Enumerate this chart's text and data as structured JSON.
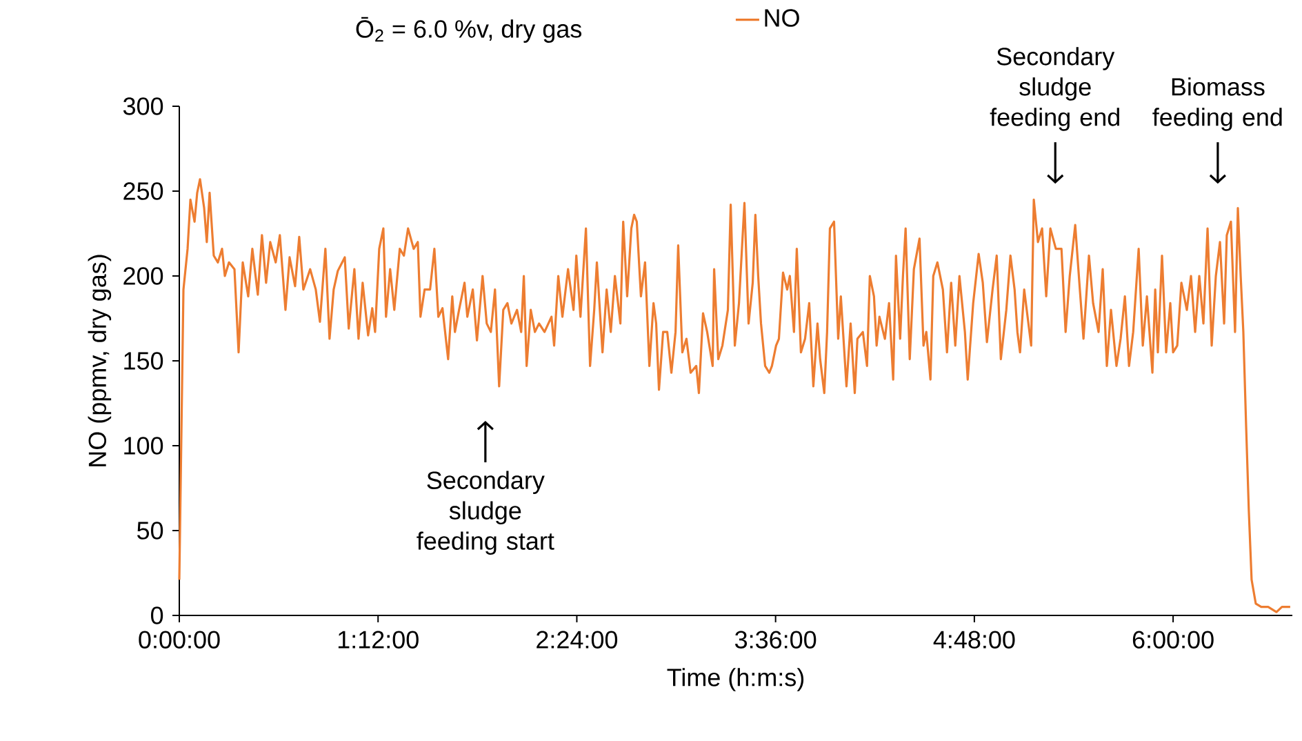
{
  "chart_data": {
    "type": "line",
    "xlabel": "Time (h:m:s)",
    "ylabel": "NO (ppmv, dry gas)",
    "xlim": [
      0,
      6.72
    ],
    "ylim": [
      0,
      300
    ],
    "xticks": [
      {
        "value": 0,
        "label": "0:00:00"
      },
      {
        "value": 1.2,
        "label": "1:12:00"
      },
      {
        "value": 2.4,
        "label": "2:24:00"
      },
      {
        "value": 3.6,
        "label": "3:36:00"
      },
      {
        "value": 4.8,
        "label": "4:48:00"
      },
      {
        "value": 6.0,
        "label": "6:00:00"
      }
    ],
    "yticks": [
      0,
      50,
      100,
      150,
      200,
      250,
      300
    ],
    "grid": false,
    "legend": "top",
    "marker": "none",
    "line_style": "solid",
    "annotations": [
      "Ō$_{2}$ = 6.0 %v, dry gas",
      "Secondary sludge feeding start",
      "Secondary sludge feeding end",
      "Biomass feeding end"
    ],
    "series": [
      {
        "name": "NO",
        "color": "#ed7d31",
        "x": [
          0,
          0.025,
          0.05,
          0.067,
          0.092,
          0.108,
          0.125,
          0.15,
          0.166,
          0.183,
          0.208,
          0.233,
          0.258,
          0.275,
          0.3,
          0.333,
          0.358,
          0.383,
          0.416,
          0.441,
          0.474,
          0.499,
          0.524,
          0.549,
          0.582,
          0.607,
          0.641,
          0.666,
          0.699,
          0.724,
          0.749,
          0.79,
          0.824,
          0.849,
          0.882,
          0.907,
          0.932,
          0.957,
          0.999,
          1.023,
          1.057,
          1.082,
          1.107,
          1.14,
          1.165,
          1.182,
          1.207,
          1.232,
          1.248,
          1.273,
          1.298,
          1.331,
          1.356,
          1.381,
          1.415,
          1.44,
          1.456,
          1.481,
          1.514,
          1.54,
          1.564,
          1.589,
          1.623,
          1.648,
          1.664,
          1.689,
          1.722,
          1.739,
          1.772,
          1.797,
          1.831,
          1.856,
          1.881,
          1.906,
          1.931,
          1.956,
          1.981,
          2.005,
          2.039,
          2.064,
          2.08,
          2.097,
          2.122,
          2.147,
          2.172,
          2.205,
          2.247,
          2.263,
          2.288,
          2.313,
          2.347,
          2.38,
          2.397,
          2.422,
          2.455,
          2.48,
          2.505,
          2.521,
          2.555,
          2.58,
          2.605,
          2.63,
          2.663,
          2.68,
          2.704,
          2.729,
          2.746,
          2.762,
          2.787,
          2.812,
          2.838,
          2.863,
          2.879,
          2.896,
          2.921,
          2.946,
          2.971,
          2.996,
          3.012,
          3.037,
          3.062,
          3.087,
          3.121,
          3.137,
          3.162,
          3.187,
          3.22,
          3.229,
          3.254,
          3.279,
          3.312,
          3.329,
          3.354,
          3.379,
          3.412,
          3.437,
          3.462,
          3.478,
          3.495,
          3.512,
          3.537,
          3.562,
          3.578,
          3.603,
          3.62,
          3.645,
          3.67,
          3.686,
          3.711,
          3.728,
          3.753,
          3.778,
          3.803,
          3.828,
          3.853,
          3.869,
          3.894,
          3.911,
          3.928,
          3.953,
          3.978,
          3.994,
          4.028,
          4.053,
          4.078,
          4.094,
          4.127,
          4.152,
          4.169,
          4.194,
          4.21,
          4.227,
          4.26,
          4.285,
          4.31,
          4.327,
          4.352,
          4.369,
          4.385,
          4.41,
          4.435,
          4.469,
          4.493,
          4.51,
          4.535,
          4.552,
          4.577,
          4.61,
          4.635,
          4.66,
          4.685,
          4.71,
          4.743,
          4.76,
          4.793,
          4.826,
          4.851,
          4.876,
          4.91,
          4.935,
          4.96,
          4.993,
          5.018,
          5.043,
          5.06,
          5.076,
          5.101,
          5.143,
          5.159,
          5.184,
          5.209,
          5.234,
          5.259,
          5.292,
          5.326,
          5.351,
          5.376,
          5.409,
          5.434,
          5.459,
          5.492,
          5.517,
          5.55,
          5.575,
          5.6,
          5.625,
          5.658,
          5.683,
          5.709,
          5.734,
          5.759,
          5.792,
          5.817,
          5.842,
          5.875,
          5.892,
          5.908,
          5.933,
          5.958,
          5.983,
          6.0,
          6.025,
          6.05,
          6.083,
          6.108,
          6.133,
          6.158,
          6.183,
          6.208,
          6.233,
          6.258,
          6.283,
          6.308,
          6.324,
          6.349,
          6.374,
          6.391,
          6.408,
          6.424,
          6.441,
          6.457,
          6.474,
          6.499,
          6.532,
          6.574,
          6.624,
          6.657,
          6.707
        ],
        "values": [
          21,
          192,
          216,
          245,
          232,
          249,
          257,
          240,
          220,
          249,
          212,
          208,
          216,
          200,
          208,
          204,
          155,
          208,
          188,
          216,
          189,
          224,
          196,
          220,
          208,
          224,
          180,
          211,
          194,
          223,
          192,
          204,
          192,
          173,
          216,
          163,
          192,
          203,
          211,
          169,
          204,
          163,
          196,
          165,
          181,
          167,
          216,
          228,
          176,
          204,
          180,
          216,
          212,
          228,
          216,
          220,
          176,
          192,
          192,
          216,
          176,
          181,
          151,
          188,
          167,
          180,
          196,
          176,
          192,
          162,
          200,
          172,
          167,
          192,
          135,
          180,
          184,
          172,
          180,
          167,
          200,
          147,
          180,
          167,
          172,
          167,
          176,
          159,
          200,
          176,
          204,
          180,
          212,
          176,
          228,
          147,
          180,
          208,
          155,
          192,
          167,
          200,
          172,
          232,
          188,
          228,
          236,
          232,
          188,
          208,
          147,
          184,
          172,
          133,
          167,
          167,
          143,
          167,
          218,
          155,
          163,
          143,
          147,
          131,
          178,
          167,
          147,
          204,
          151,
          159,
          180,
          242,
          159,
          184,
          243,
          172,
          196,
          236,
          200,
          172,
          147,
          143,
          147,
          159,
          163,
          202,
          192,
          200,
          167,
          216,
          155,
          163,
          184,
          135,
          172,
          151,
          131,
          167,
          228,
          232,
          163,
          188,
          135,
          172,
          131,
          163,
          167,
          147,
          200,
          188,
          159,
          176,
          163,
          184,
          139,
          212,
          163,
          200,
          228,
          151,
          204,
          222,
          159,
          167,
          139,
          200,
          208,
          192,
          155,
          196,
          159,
          200,
          167,
          139,
          184,
          213,
          196,
          161,
          192,
          212,
          151,
          180,
          212,
          192,
          167,
          155,
          192,
          159,
          245,
          220,
          228,
          188,
          228,
          216,
          216,
          167,
          200,
          230,
          196,
          163,
          212,
          184,
          167,
          204,
          147,
          180,
          147,
          163,
          188,
          147,
          167,
          216,
          159,
          188,
          143,
          192,
          155,
          212,
          155,
          184,
          155,
          159,
          196,
          180,
          200,
          167,
          200,
          172,
          228,
          159,
          200,
          220,
          172,
          224,
          232,
          167,
          240,
          200,
          167,
          111,
          62,
          21,
          7,
          5,
          5,
          2,
          5,
          5
        ]
      }
    ]
  }
}
